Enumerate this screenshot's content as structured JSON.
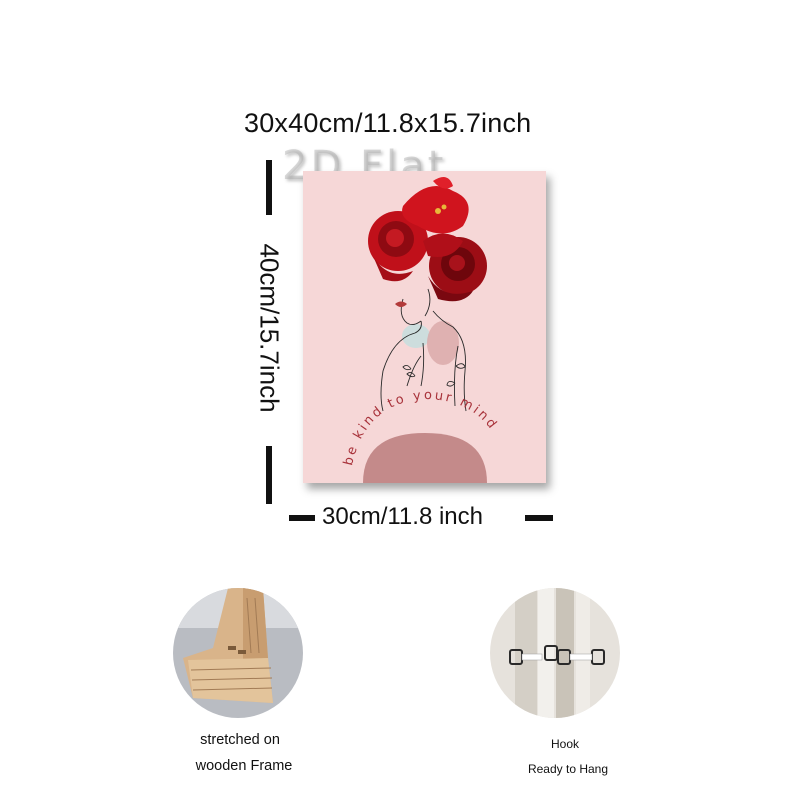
{
  "dimensions": {
    "overall": "30x40cm/11.8x15.7inch",
    "height": "40cm/15.7inch",
    "width": "30cm/11.8 inch",
    "watermark": "2D Flat"
  },
  "artwork": {
    "quote": "be kind to your mind"
  },
  "features": [
    {
      "caption_line1": "stretched on",
      "caption_line2": "wooden Frame",
      "icon": "wooden-frame"
    },
    {
      "caption_line1": "Hook",
      "caption_line2": "Ready to Hang",
      "icon": "hook"
    }
  ],
  "colors": {
    "canvas_pink": "#f6d7d7",
    "rose_red": "#c0101a",
    "arch_mauve": "#c48a8a",
    "text_red": "#a8323a"
  }
}
